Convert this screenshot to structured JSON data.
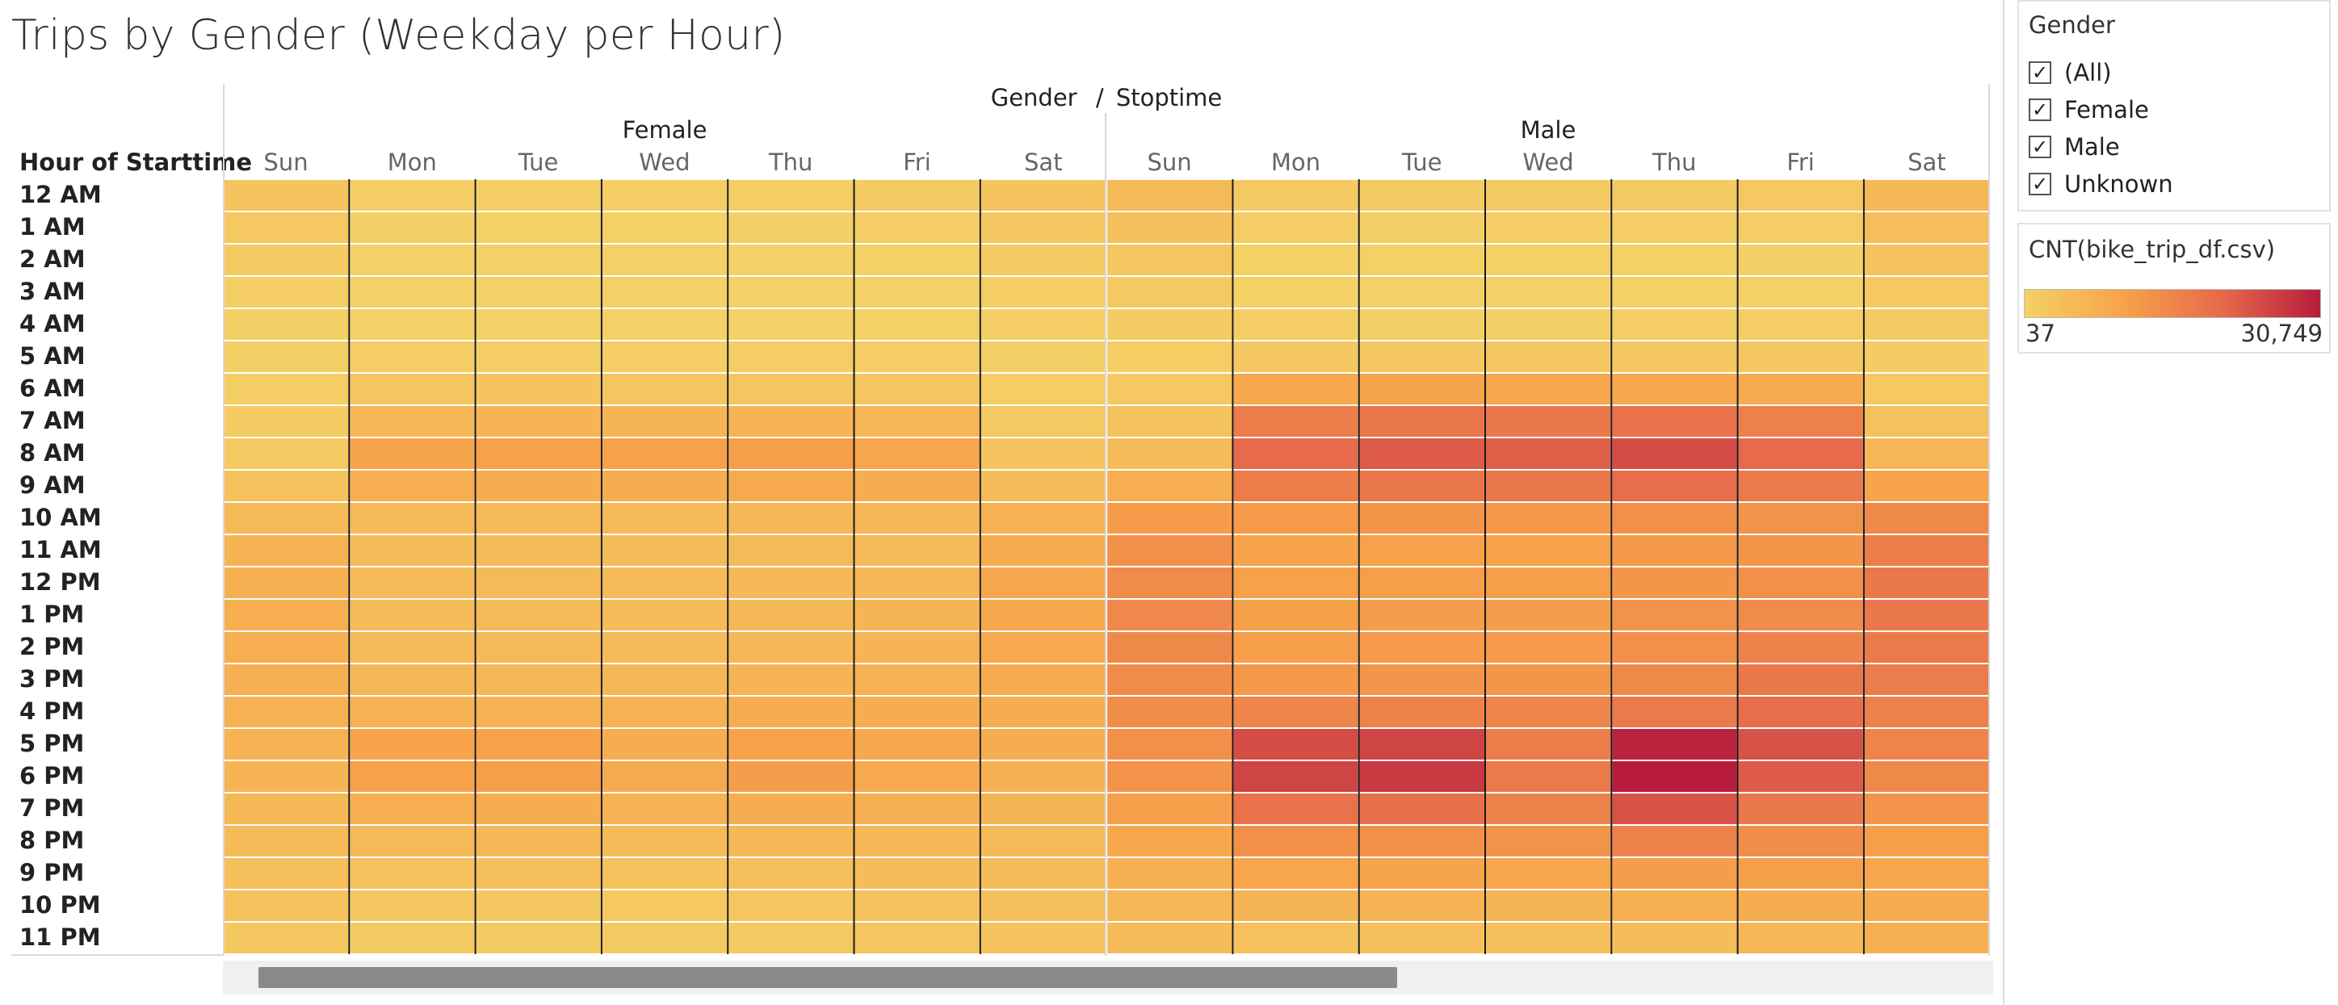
{
  "title": "Trips by Gender (Weekday per Hour)",
  "header": {
    "gender_label": "Gender",
    "separator": "/",
    "stoptime_label": "Stoptime",
    "row_header": "Hour of Starttime"
  },
  "filter": {
    "title": "Gender",
    "items": [
      {
        "label": "(All)",
        "checked": true
      },
      {
        "label": "Female",
        "checked": true
      },
      {
        "label": "Male",
        "checked": true
      },
      {
        "label": "Unknown",
        "checked": true
      }
    ]
  },
  "legend": {
    "title": "CNT(bike_trip_df.csv)",
    "min_label": "37",
    "max_label": "30,749",
    "colors": [
      "#f4d166",
      "#f7a24a",
      "#e66a4b",
      "#b71c3c"
    ]
  },
  "chart_data": {
    "type": "heatmap",
    "title": "Trips by Gender (Weekday per Hour)",
    "ylabel": "Hour of Starttime",
    "groups": [
      {
        "name": "Female",
        "days": [
          "Sun",
          "Mon",
          "Tue",
          "Wed",
          "Thu",
          "Fri",
          "Sat"
        ]
      },
      {
        "name": "Male",
        "days": [
          "Sun",
          "Mon",
          "Tue",
          "Wed",
          "Thu",
          "Fri",
          "Sat"
        ]
      }
    ],
    "hours": [
      "12 AM",
      "1 AM",
      "2 AM",
      "3 AM",
      "4 AM",
      "5 AM",
      "6 AM",
      "7 AM",
      "8 AM",
      "9 AM",
      "10 AM",
      "11 AM",
      "12 PM",
      "1 PM",
      "2 PM",
      "3 PM",
      "4 PM",
      "5 PM",
      "6 PM",
      "7 PM",
      "8 PM",
      "9 PM",
      "10 PM",
      "11 PM"
    ],
    "color_range": [
      37,
      30749
    ],
    "values": [
      [
        2800,
        900,
        800,
        900,
        1000,
        1300,
        2900,
        5000,
        1700,
        1400,
        1500,
        1600,
        2000,
        5800
      ],
      [
        2000,
        400,
        300,
        350,
        400,
        600,
        2200,
        3700,
        700,
        500,
        600,
        700,
        900,
        4200
      ],
      [
        1400,
        200,
        150,
        200,
        200,
        300,
        1500,
        2600,
        350,
        250,
        300,
        350,
        500,
        3000
      ],
      [
        900,
        150,
        120,
        130,
        150,
        200,
        1000,
        1800,
        250,
        180,
        200,
        250,
        350,
        2100
      ],
      [
        500,
        200,
        150,
        150,
        200,
        250,
        600,
        1100,
        600,
        500,
        500,
        600,
        700,
        1300
      ],
      [
        400,
        600,
        600,
        600,
        600,
        600,
        500,
        1000,
        2300,
        2300,
        2300,
        2300,
        2300,
        1100
      ],
      [
        700,
        2600,
        2800,
        2700,
        2700,
        2500,
        1000,
        1900,
        9000,
        9600,
        9400,
        9200,
        8500,
        2100
      ],
      [
        1100,
        5800,
        6400,
        6200,
        6300,
        5600,
        1700,
        3000,
        17000,
        18500,
        18000,
        19000,
        16500,
        3500
      ],
      [
        1800,
        9600,
        10500,
        10200,
        11000,
        9500,
        2800,
        4700,
        20500,
        22500,
        22000,
        24500,
        20500,
        6000
      ],
      [
        3200,
        7600,
        8200,
        8000,
        8700,
        7800,
        4500,
        7600,
        17000,
        18500,
        18000,
        20000,
        17500,
        9800
      ],
      [
        5200,
        5000,
        5300,
        5200,
        5800,
        5600,
        7000,
        11500,
        11500,
        12500,
        12000,
        13500,
        13000,
        14800
      ],
      [
        6500,
        4500,
        4800,
        4600,
        5100,
        5300,
        8400,
        13500,
        10000,
        10500,
        10500,
        12000,
        12500,
        17000
      ],
      [
        7200,
        4800,
        5000,
        4800,
        5400,
        5800,
        9100,
        14500,
        10500,
        11000,
        11000,
        12500,
        13500,
        18000
      ],
      [
        7700,
        4900,
        5100,
        4900,
        5600,
        6100,
        9000,
        15000,
        10600,
        11200,
        11200,
        13000,
        14500,
        18000
      ],
      [
        7600,
        5100,
        5300,
        5100,
        5800,
        6400,
        8700,
        14800,
        11000,
        11800,
        11800,
        13500,
        16000,
        17600
      ],
      [
        7400,
        5500,
        5800,
        5500,
        6300,
        7000,
        8400,
        14500,
        12000,
        12700,
        12500,
        14800,
        18000,
        17200
      ],
      [
        7000,
        6800,
        7100,
        6800,
        7800,
        7900,
        7800,
        14000,
        15500,
        16000,
        15500,
        17500,
        20000,
        16400
      ],
      [
        6800,
        9800,
        10200,
        7900,
        10500,
        9000,
        7800,
        13500,
        24500,
        25500,
        17000,
        30000,
        23500,
        15700
      ],
      [
        6400,
        10500,
        11000,
        8500,
        11200,
        8600,
        7200,
        12800,
        25500,
        27000,
        17500,
        30749,
        22500,
        14800
      ],
      [
        5800,
        7600,
        7900,
        6800,
        8200,
        7400,
        6200,
        11000,
        19000,
        19500,
        16000,
        23500,
        18000,
        12900
      ],
      [
        4900,
        5300,
        5400,
        4800,
        5800,
        5700,
        5100,
        9000,
        13500,
        13500,
        13000,
        16000,
        14000,
        10800
      ],
      [
        4000,
        3600,
        3700,
        3300,
        3900,
        4300,
        4400,
        7200,
        9500,
        9600,
        9500,
        11200,
        10800,
        9300
      ],
      [
        3200,
        2200,
        2300,
        2100,
        2500,
        3300,
        3900,
        5800,
        6200,
        6300,
        6200,
        7300,
        7800,
        8200
      ],
      [
        2300,
        1300,
        1400,
        1400,
        1700,
        2600,
        3400,
        4300,
        3600,
        3700,
        3800,
        4400,
        5600,
        7200
      ]
    ]
  }
}
